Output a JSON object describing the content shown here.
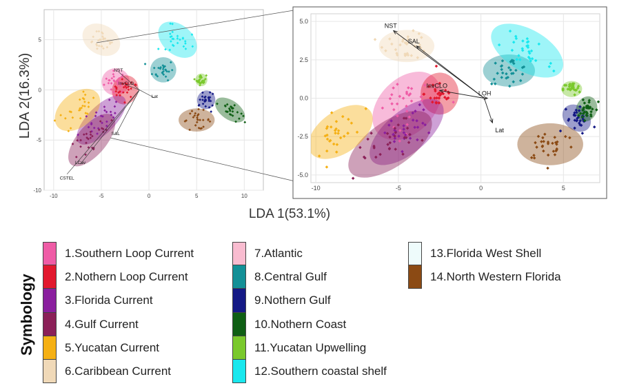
{
  "axes": {
    "xlabel": "LDA 1(53.1%)",
    "ylabel": "LDA 2(16.3%)"
  },
  "legend": {
    "title": "Symbology",
    "items": [
      {
        "label": "1.Southern Loop Current",
        "color": "#ef5ca6"
      },
      {
        "label": "2.Nothern Loop Current",
        "color": "#e2182e"
      },
      {
        "label": "3.Florida Current",
        "color": "#8a1f9e"
      },
      {
        "label": "4.Gulf Current",
        "color": "#8b2058"
      },
      {
        "label": "5.Yucatan Current",
        "color": "#f5b014"
      },
      {
        "label": "6.Caribbean Current",
        "color": "#f0d9b8"
      },
      {
        "label": "7.Atlantic",
        "color": "#f9bcd0"
      },
      {
        "label": "8.Central Gulf",
        "color": "#139097"
      },
      {
        "label": "9.Nothern Gulf",
        "color": "#141985"
      },
      {
        "label": "10.Nothern Coast",
        "color": "#0f5f14"
      },
      {
        "label": "11.Yucatan Upwelling",
        "color": "#7ac92c"
      },
      {
        "label": "12.Southern coastal shelf",
        "color": "#19e8ee"
      },
      {
        "label": "13.Florida West Shell",
        "color": "#eefbfb"
      },
      {
        "label": "14.North Western Florida",
        "color": "#8b4a14"
      }
    ]
  },
  "chart_data": [
    {
      "type": "scatter",
      "panel": "overview",
      "xlim": [
        -11,
        12
      ],
      "ylim": [
        -10,
        8
      ],
      "x_ticks": [
        "-10",
        "-5",
        "0",
        "5",
        "10"
      ],
      "y_ticks": [
        "5",
        "0",
        "-5",
        "-10"
      ],
      "grid": true,
      "vectors": [
        "CSTEL",
        "LCav",
        "SAL",
        "NST",
        "InvCLO",
        "Lat"
      ],
      "groups": [
        {
          "name": "1.Southern Loop Current",
          "center": [
            -3.5,
            0.8
          ]
        },
        {
          "name": "2.Nothern Loop Current",
          "center": [
            -2.5,
            0.0
          ]
        },
        {
          "name": "3.Florida Current",
          "center": [
            -5,
            -3
          ]
        },
        {
          "name": "4.Gulf Current",
          "center": [
            -6,
            -5
          ]
        },
        {
          "name": "5.Yucatan Current",
          "center": [
            -7.5,
            -2
          ]
        },
        {
          "name": "6.Caribbean Current",
          "center": [
            -5,
            5
          ]
        },
        {
          "name": "8.Central Gulf",
          "center": [
            1.5,
            2
          ]
        },
        {
          "name": "9.Nothern Gulf",
          "center": [
            6,
            -1
          ]
        },
        {
          "name": "10.Nothern Coast",
          "center": [
            8.5,
            -2
          ]
        },
        {
          "name": "11.Yucatan Upwelling",
          "center": [
            5.5,
            1
          ]
        },
        {
          "name": "12.Southern coastal shelf",
          "center": [
            3,
            5
          ]
        },
        {
          "name": "14.North Western Florida",
          "center": [
            5,
            -3
          ]
        }
      ]
    },
    {
      "type": "scatter",
      "panel": "zoom",
      "xlim": [
        -10.3,
        7.2
      ],
      "ylim": [
        -5.5,
        5.5
      ],
      "x_ticks": [
        "-10",
        "-5",
        "0",
        "5"
      ],
      "y_ticks": [
        "5.0",
        "2.5",
        "0.0",
        "-2.5",
        "-5.0"
      ],
      "grid": true,
      "vectors": [
        {
          "label": "NST",
          "x": -5.3,
          "y": 4.4
        },
        {
          "label": "SAL",
          "x": -3.9,
          "y": 3.4
        },
        {
          "label": "InvCLO",
          "x": -2.5,
          "y": 0.5
        },
        {
          "label": "Lat",
          "x": 0.7,
          "y": -1.6
        },
        {
          "label": "LOH",
          "x": 0.4,
          "y": 0.0
        }
      ],
      "groups": [
        {
          "name": "1.Southern Loop Current",
          "center": [
            -4.5,
            -0.5
          ]
        },
        {
          "name": "2.Nothern Loop Current",
          "center": [
            -2.5,
            0.3
          ]
        },
        {
          "name": "3.Florida Current",
          "center": [
            -4.5,
            -2.2
          ]
        },
        {
          "name": "4.Gulf Current",
          "center": [
            -5.5,
            -3.0
          ]
        },
        {
          "name": "5.Yucatan Current",
          "center": [
            -8.5,
            -2.2
          ]
        },
        {
          "name": "6.Caribbean Current",
          "center": [
            -4.5,
            3.4
          ]
        },
        {
          "name": "8.Central Gulf",
          "center": [
            1.7,
            1.8
          ]
        },
        {
          "name": "9.Nothern Gulf",
          "center": [
            5.8,
            -1.3
          ]
        },
        {
          "name": "10.Nothern Coast",
          "center": [
            6.4,
            -0.7
          ]
        },
        {
          "name": "11.Yucatan Upwelling",
          "center": [
            5.5,
            0.6
          ]
        },
        {
          "name": "12.Southern coastal shelf",
          "center": [
            2.8,
            3.1
          ]
        },
        {
          "name": "14.North Western Florida",
          "center": [
            4.2,
            -3.0
          ]
        }
      ]
    }
  ]
}
